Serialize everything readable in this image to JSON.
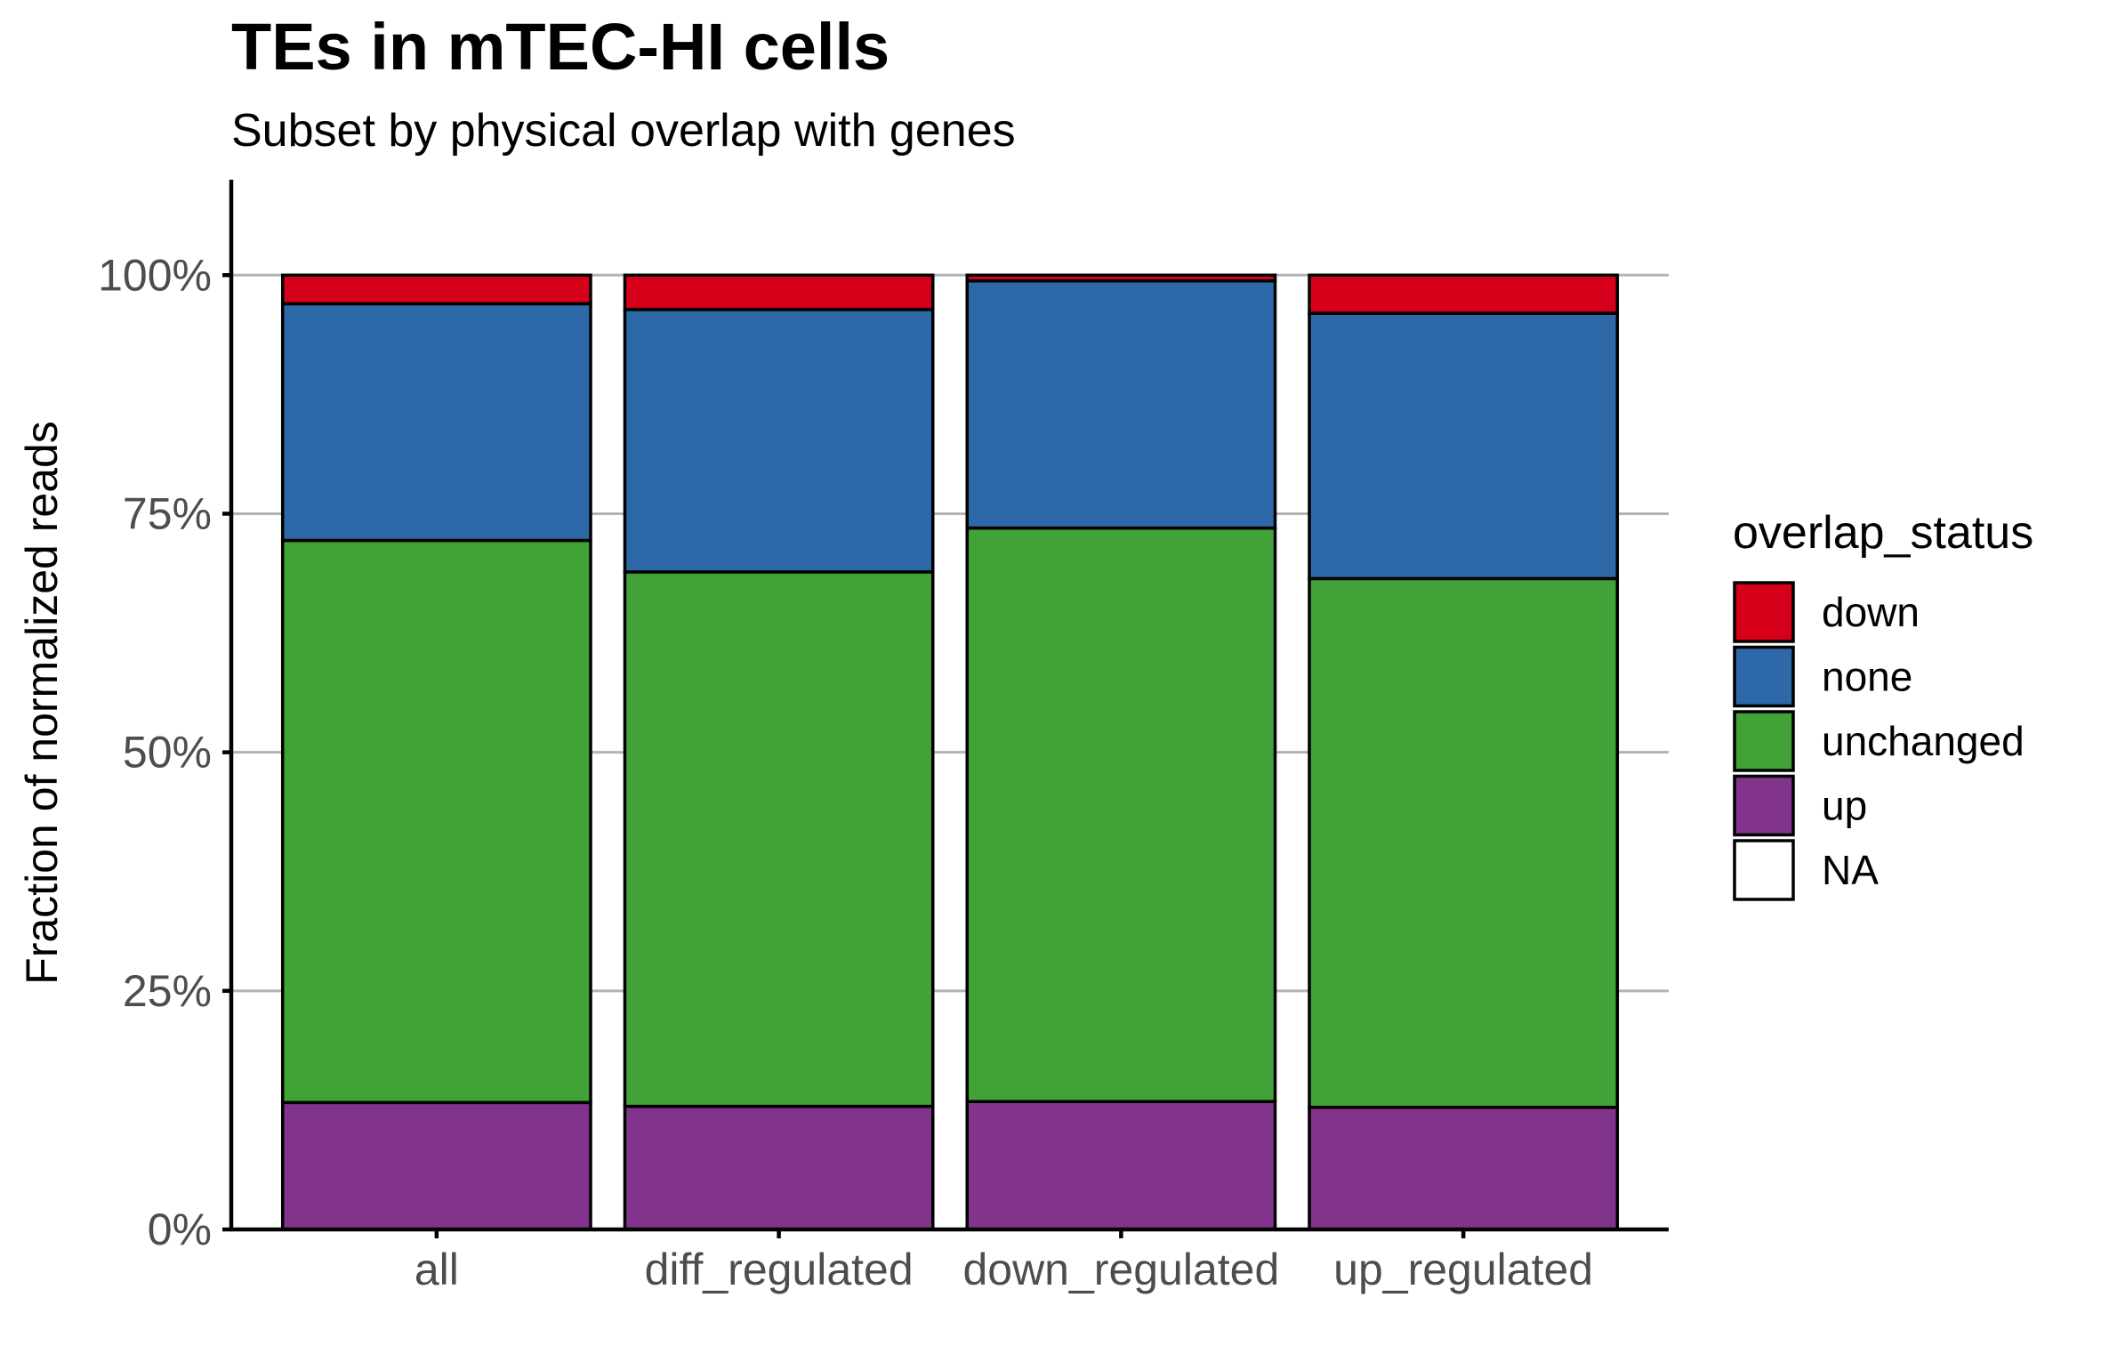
{
  "chart_data": {
    "type": "bar",
    "stacked": true,
    "title": "TEs in mTEC-HI cells",
    "subtitle": "Subset by physical overlap with genes",
    "xlabel": "",
    "ylabel": "Fraction of normalized reads",
    "ylim": [
      0,
      1.1
    ],
    "yticks": [
      0,
      0.25,
      0.5,
      0.75,
      1.0
    ],
    "ytick_labels": [
      "0%",
      "25%",
      "50%",
      "75%",
      "100%"
    ],
    "categories": [
      "all",
      "diff_regulated",
      "down_regulated",
      "up_regulated"
    ],
    "stack_order_top_to_bottom": [
      "down",
      "none",
      "unchanged",
      "up",
      "NA"
    ],
    "series": [
      {
        "name": "down",
        "color": "#d7001a",
        "values": [
          0.03,
          0.036,
          0.006,
          0.04
        ]
      },
      {
        "name": "none",
        "color": "#2d69a8",
        "values": [
          0.248,
          0.275,
          0.259,
          0.278
        ]
      },
      {
        "name": "unchanged",
        "color": "#41a238",
        "values": [
          0.589,
          0.56,
          0.601,
          0.554
        ]
      },
      {
        "name": "up",
        "color": "#82348c",
        "values": [
          0.133,
          0.129,
          0.134,
          0.128
        ]
      },
      {
        "name": "NA",
        "color": "#ffffff",
        "values": [
          0,
          0,
          0,
          0
        ]
      }
    ],
    "grid": {
      "horizontal": true,
      "vertical": false
    },
    "legend": {
      "title": "overlap_status",
      "position": "right",
      "entries": [
        "down",
        "none",
        "unchanged",
        "up",
        "NA"
      ]
    }
  }
}
